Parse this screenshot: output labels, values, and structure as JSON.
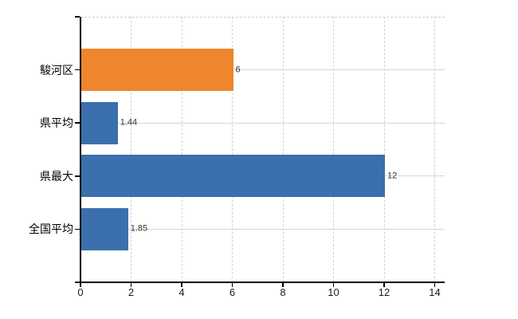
{
  "chart_data": {
    "type": "bar",
    "orientation": "horizontal",
    "categories": [
      "駿河区",
      "県平均",
      "県最大",
      "全国平均"
    ],
    "values": [
      6,
      1.44,
      12,
      1.85
    ],
    "value_labels": [
      "6",
      "1.44",
      "12",
      "1.85"
    ],
    "bar_colors": [
      "#ee862d",
      "#3b6fae",
      "#3b6fae",
      "#3b6fae"
    ],
    "x_ticks": [
      0,
      2,
      4,
      6,
      8,
      10,
      12,
      14
    ],
    "x_tick_labels": [
      "0",
      "2",
      "4",
      "6",
      "8",
      "10",
      "12",
      "14"
    ],
    "xlim": [
      0,
      14.4
    ],
    "grid": true,
    "legend_position": "none",
    "axis_color": "#000000",
    "gridline_color": "#d5d5d5",
    "background_color": "#ffffff"
  }
}
